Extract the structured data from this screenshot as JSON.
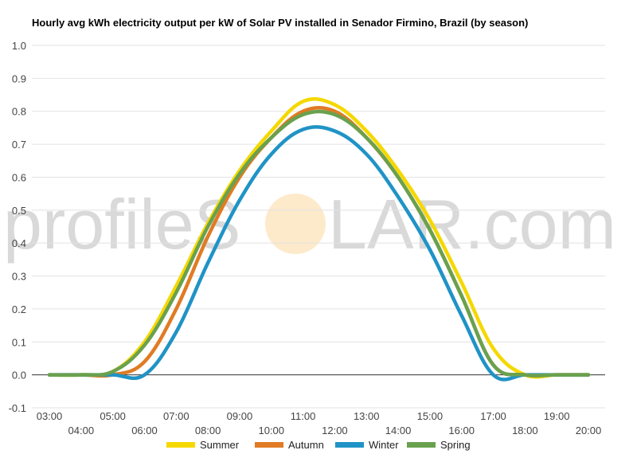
{
  "chart_data": {
    "type": "line",
    "title": "Hourly avg kWh electricity output per kW of Solar PV installed in Senador Firmino, Brazil (by season)",
    "xlabel": "",
    "ylabel": "",
    "categories": [
      "03:00",
      "04:00",
      "05:00",
      "06:00",
      "07:00",
      "08:00",
      "09:00",
      "10:00",
      "11:00",
      "12:00",
      "13:00",
      "14:00",
      "15:00",
      "16:00",
      "17:00",
      "18:00",
      "19:00",
      "20:00"
    ],
    "ylim": [
      -0.1,
      1.0
    ],
    "yticks": [
      -0.1,
      0.0,
      0.1,
      0.2,
      0.3,
      0.4,
      0.5,
      0.6,
      0.7,
      0.8,
      0.9,
      1.0
    ],
    "grid": true,
    "legend": "bottom",
    "series": [
      {
        "name": "Summer",
        "color": "#f5d800",
        "values": [
          0,
          0,
          0.01,
          0.1,
          0.27,
          0.46,
          0.62,
          0.74,
          0.83,
          0.82,
          0.74,
          0.62,
          0.47,
          0.28,
          0.08,
          0,
          0,
          0
        ]
      },
      {
        "name": "Autumn",
        "color": "#e07b24",
        "values": [
          0,
          0,
          0,
          0.04,
          0.2,
          0.42,
          0.6,
          0.72,
          0.8,
          0.8,
          0.72,
          0.6,
          0.44,
          0.24,
          0.03,
          0,
          0,
          0
        ]
      },
      {
        "name": "Winter",
        "color": "#2093c6",
        "values": [
          0,
          0,
          0,
          0,
          0.13,
          0.34,
          0.53,
          0.67,
          0.745,
          0.74,
          0.67,
          0.54,
          0.38,
          0.18,
          0,
          0,
          0,
          0
        ]
      },
      {
        "name": "Spring",
        "color": "#6aa14e",
        "values": [
          0,
          0,
          0.01,
          0.09,
          0.25,
          0.45,
          0.61,
          0.72,
          0.79,
          0.79,
          0.72,
          0.6,
          0.44,
          0.24,
          0.03,
          0,
          0,
          0
        ]
      }
    ]
  },
  "watermark": {
    "text_left": "profileS",
    "text_right": "LAR.com",
    "sun_color": "#fdeacb"
  }
}
